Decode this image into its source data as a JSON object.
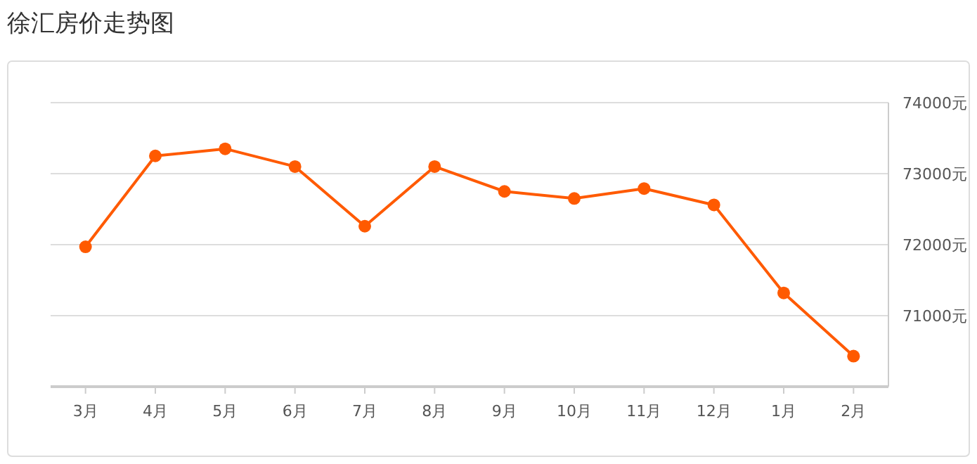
{
  "chart_data": {
    "type": "line",
    "title": "徐汇房价走势图",
    "categories": [
      "3月",
      "4月",
      "5月",
      "6月",
      "7月",
      "8月",
      "9月",
      "10月",
      "11月",
      "12月",
      "1月",
      "2月"
    ],
    "series": [
      {
        "color": "#ff5a00",
        "values": [
          71970,
          73250,
          73350,
          73100,
          72260,
          73100,
          72750,
          72650,
          72790,
          72560,
          71320,
          70430
        ]
      }
    ],
    "ylim": [
      70000,
      74000
    ],
    "yticks": [
      {
        "value": 71000,
        "label": "71000元"
      },
      {
        "value": 72000,
        "label": "72000元"
      },
      {
        "value": 73000,
        "label": "73000元"
      },
      {
        "value": 74000,
        "label": "74000元"
      }
    ],
    "grid": "y",
    "marker": "circle",
    "line_style": "solid"
  }
}
